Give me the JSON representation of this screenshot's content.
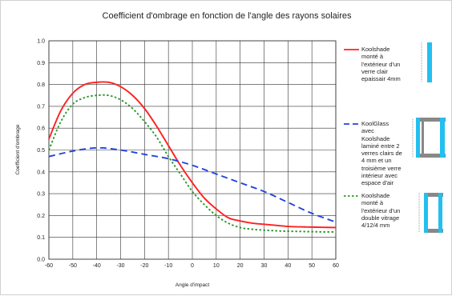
{
  "chart_data": {
    "type": "line",
    "title": "Coefficient d'ombrage en fonction de l'angle des rayons solaires",
    "xlabel": "Angle d'impact",
    "ylabel": "Coefficient d'ombrage",
    "xlim": [
      -60,
      60
    ],
    "ylim": [
      0,
      1.0
    ],
    "xticks": [
      "-60",
      "-50",
      "-40",
      "-30",
      "-20",
      "-10",
      "0",
      "10",
      "20",
      "30",
      "40",
      "50",
      "60"
    ],
    "yticks": [
      "0.0",
      "0.1",
      "0.2",
      "0.3",
      "0.4",
      "0.5",
      "0.6",
      "0.7",
      "0.8",
      "0.9",
      "1.0"
    ],
    "grid": true,
    "legend_position": "right",
    "series": [
      {
        "name": "Koolshade monté à l'extérieur d'un verre clair epaissair 4mm",
        "color": "#ff2020",
        "style": "solid",
        "x": [
          -60,
          -55,
          -50,
          -45,
          -40,
          -35,
          -30,
          -25,
          -20,
          -15,
          -10,
          -5,
          0,
          5,
          10,
          15,
          20,
          25,
          30,
          35,
          40,
          45,
          50,
          55,
          60
        ],
        "y": [
          0.55,
          0.68,
          0.76,
          0.8,
          0.81,
          0.81,
          0.79,
          0.75,
          0.69,
          0.61,
          0.52,
          0.43,
          0.35,
          0.28,
          0.23,
          0.19,
          0.175,
          0.165,
          0.16,
          0.155,
          0.15,
          0.148,
          0.147,
          0.146,
          0.145
        ]
      },
      {
        "name": "KoolGlass avec Koolshade laminé entre 2 verres clairs de 4 mm et un troisième verre intérieur avec espace d'air",
        "color": "#2244dd",
        "style": "dashed",
        "x": [
          -60,
          -50,
          -40,
          -30,
          -20,
          -10,
          0,
          10,
          20,
          30,
          40,
          50,
          60
        ],
        "y": [
          0.47,
          0.495,
          0.51,
          0.5,
          0.48,
          0.46,
          0.43,
          0.39,
          0.35,
          0.31,
          0.26,
          0.21,
          0.17
        ]
      },
      {
        "name": "Koolshade monté à l'extérieur d'un double vitrage 4/12/4 mm",
        "color": "#2a9a2a",
        "style": "dotted",
        "x": [
          -60,
          -55,
          -50,
          -45,
          -40,
          -35,
          -30,
          -25,
          -20,
          -15,
          -10,
          -5,
          0,
          5,
          10,
          15,
          20,
          25,
          30,
          35,
          40,
          45,
          50,
          55,
          60
        ],
        "y": [
          0.5,
          0.63,
          0.71,
          0.74,
          0.75,
          0.75,
          0.73,
          0.69,
          0.63,
          0.56,
          0.47,
          0.39,
          0.31,
          0.25,
          0.2,
          0.165,
          0.145,
          0.137,
          0.133,
          0.13,
          0.128,
          0.127,
          0.126,
          0.125,
          0.125
        ]
      }
    ]
  },
  "legend": [
    {
      "text": "Koolshade\nmonté à\nl'extérieur d'un\nverre clair\nepaissair 4mm"
    },
    {
      "text": "KoolGlass\navec\nKoolshade\nlaminé entre 2\nverres clairs de\n4 mm et un\ntroisième verre\nintérieur avec\nespace d'air"
    },
    {
      "text": "Koolshade\nmonté à\nl'extérieur d'un\ndouble vitrage\n4/12/4 mm"
    }
  ],
  "icons": [
    "single-pane-icon",
    "laminated-pane-icon",
    "double-glazing-icon"
  ],
  "colors": {
    "glass": "#22c0f0",
    "frame": "#888888",
    "grid": "#333333"
  }
}
